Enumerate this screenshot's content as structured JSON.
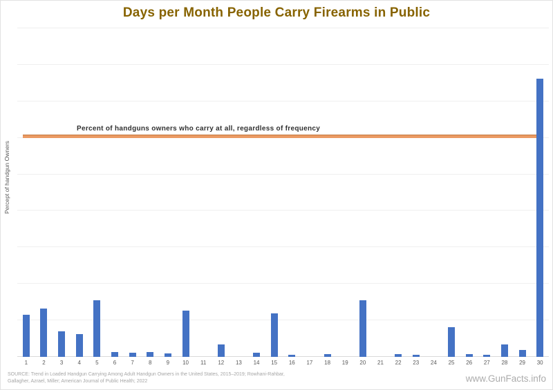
{
  "chart_data": {
    "type": "bar",
    "title": "Days per Month People Carry Firearms in Public",
    "xlabel": "",
    "ylabel": "Percept of handgun Owners",
    "categories": [
      "1",
      "2",
      "3",
      "4",
      "5",
      "6",
      "7",
      "8",
      "9",
      "10",
      "11",
      "12",
      "13",
      "14",
      "15",
      "16",
      "17",
      "18",
      "19",
      "20",
      "21",
      "22",
      "23",
      "24",
      "25",
      "26",
      "27",
      "28",
      "29",
      "30"
    ],
    "values": [
      5.8,
      6.6,
      3.5,
      3.1,
      7.8,
      0.7,
      0.6,
      0.7,
      0.5,
      6.3,
      0,
      1.7,
      0,
      0.6,
      6.0,
      0.3,
      0,
      0.4,
      0,
      7.8,
      0,
      0.4,
      0.3,
      0,
      4.1,
      0.4,
      0.3,
      1.7,
      0.9,
      38.1
    ],
    "ylim": [
      0,
      45
    ],
    "gridline_interval": 5,
    "grid": true,
    "y_tick_labels_shown": false,
    "legend_position": "none",
    "ref_line": {
      "label": "Percent of handguns owners who carry at all, regardless of frequency",
      "value": 30.2
    }
  },
  "footer": {
    "source_text": "SOURCE: Trend in Loaded Handgun Carrying Among Adult Handgun Owners in the United States, 2015–2019;  Rowhani-Rahbar,\nGallagher, Azrael, Miller; American Journal of Public Health; 2022",
    "website": "www.GunFacts.info"
  },
  "colors": {
    "title": "#876300",
    "bar": "#4472C4",
    "ref_line": "#EB9A63",
    "tick": "#595959",
    "gridline": "#efefef",
    "baseline": "#d9d9d9",
    "ref_label": "#303030",
    "source": "#a6a6a6",
    "website": "#acacac"
  }
}
